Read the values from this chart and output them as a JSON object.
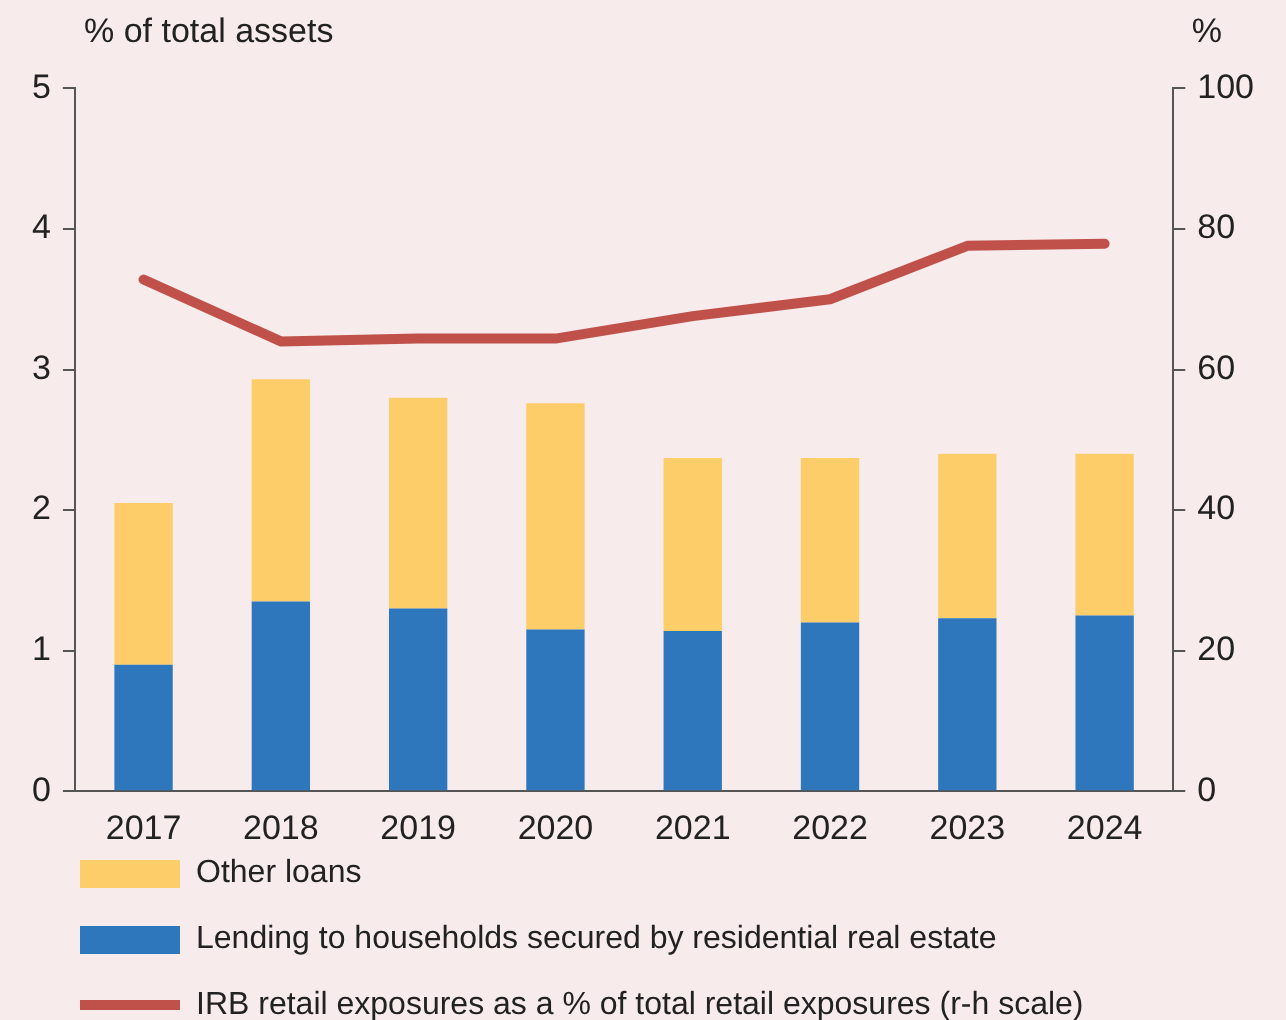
{
  "chart_data": {
    "type": "bar",
    "stacked": true,
    "ylabel": "% of total assets",
    "y2label": "%",
    "categories": [
      "2017",
      "2018",
      "2019",
      "2020",
      "2021",
      "2022",
      "2023",
      "2024"
    ],
    "series": [
      {
        "name": "Lending to households secured by residential real estate",
        "color": "#2f77bd",
        "values": [
          0.9,
          1.35,
          1.3,
          1.15,
          1.14,
          1.2,
          1.23,
          1.25
        ]
      },
      {
        "name": "Other loans",
        "color": "#fdcd6a",
        "values": [
          1.15,
          1.58,
          1.5,
          1.61,
          1.23,
          1.17,
          1.17,
          1.15
        ]
      },
      {
        "name": "IRB retail exposures as a % of total retail exposures (r-h scale)",
        "type": "line",
        "axis": "y2",
        "color": "#c0504a",
        "values": [
          72.8,
          64,
          64.4,
          64.4,
          67.6,
          70,
          77.6,
          77.9
        ]
      }
    ],
    "ylim": [
      0,
      5
    ],
    "yticks": [
      0,
      1,
      2,
      3,
      4,
      5
    ],
    "y2lim": [
      0,
      100
    ],
    "y2ticks": [
      0,
      20,
      40,
      60,
      80,
      100
    ],
    "grid": false,
    "legend": "bottom",
    "marker": "none",
    "line_style": "solid"
  }
}
